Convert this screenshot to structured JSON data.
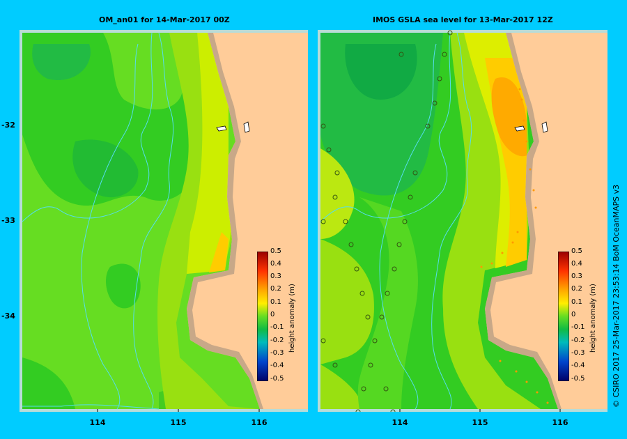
{
  "left_panel": {
    "title": "OM_an01  for 14-Mar-2017 00Z"
  },
  "right_panel": {
    "title": "IMOS GSLA sea level  for 13-Mar-2017 12Z"
  },
  "x_ticks": [
    "114",
    "115",
    "116"
  ],
  "y_ticks": [
    "-32",
    "-33",
    "-34"
  ],
  "colorbar": {
    "title": "height anomaly (m)",
    "labels": [
      "0.5",
      "0.4",
      "0.3",
      "0.2",
      "0.1",
      "0",
      "-0.1",
      "-0.2",
      "-0.3",
      "-0.4",
      "-0.5"
    ]
  },
  "copyright": "© CSIRO 2017   25-Mar-2017 23:53:14 BoM OceanMAPS v3",
  "colors": {
    "background": "#00ccff",
    "land": "#ffcc99",
    "shelf": "#c8a888",
    "contour": "#55ddee"
  }
}
